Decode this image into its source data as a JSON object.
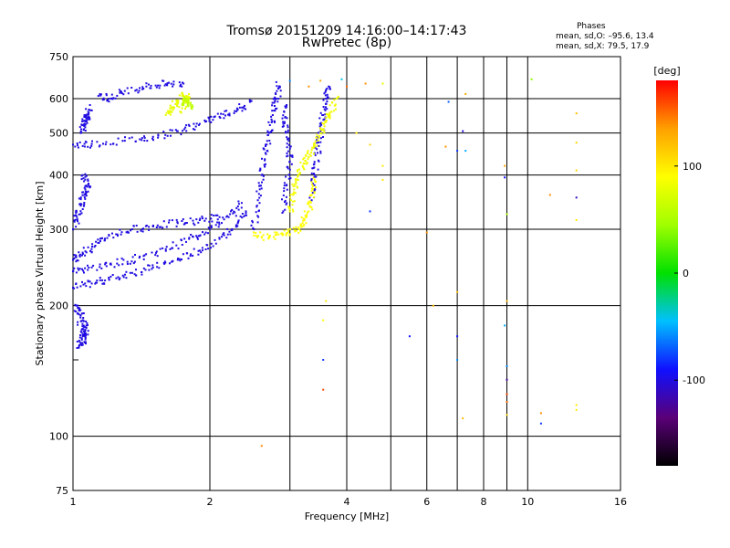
{
  "header": {
    "title_line1": "Tromsø 20151209 14:16:00–14:17:43",
    "title_line2": "RwPretec (8p)",
    "stats_title": "Phases",
    "stats_o": "mean, sd,O: –95.6, 13.4",
    "stats_x": "mean, sd,X:  79.5, 17.9"
  },
  "colors": {
    "background": "#ffffff",
    "grid": "#000000",
    "colorbar_stops": [
      "#000000",
      "#5a0078",
      "#1010ff",
      "#00c0ff",
      "#00e000",
      "#a0ff00",
      "#ffff00",
      "#ffa000",
      "#ff0000"
    ]
  },
  "chart_data": {
    "type": "scatter",
    "title": "Tromsø 20151209 14:16:00–14:17:43",
    "subtitle": "RwPretec (8p)",
    "xlabel": "Frequency [MHz]",
    "ylabel": "Stationary phase Virtual Height [km]",
    "x_scale": "log",
    "y_scale": "log",
    "xlim": [
      1,
      16
    ],
    "ylim": [
      75,
      750
    ],
    "x_ticks": [
      1,
      2,
      4,
      6,
      8,
      10,
      16
    ],
    "x_minor": [
      3,
      5,
      7,
      9
    ],
    "y_ticks": [
      75,
      100,
      200,
      300,
      400,
      500,
      600,
      750
    ],
    "y_minor": [
      150
    ],
    "grid": true,
    "colorbar": {
      "label": "[deg]",
      "range": [
        -180,
        180
      ],
      "ticks": [
        -100,
        0,
        100
      ]
    },
    "series": [
      {
        "traces": [
          {
            "phase": -100,
            "points": [
              [
                1.03,
                160
              ],
              [
                1.05,
                170
              ],
              [
                1.07,
                180
              ],
              [
                1.04,
                190
              ],
              [
                1.02,
                200
              ],
              [
                1.06,
                165
              ],
              [
                1.08,
                175
              ]
            ]
          },
          {
            "phase": -100,
            "points": [
              [
                1.0,
                220
              ],
              [
                1.1,
                225
              ],
              [
                1.2,
                230
              ],
              [
                1.35,
                238
              ],
              [
                1.5,
                245
              ],
              [
                1.7,
                255
              ],
              [
                1.9,
                268
              ],
              [
                2.1,
                285
              ],
              [
                2.3,
                305
              ],
              [
                2.4,
                330
              ]
            ]
          },
          {
            "phase": -100,
            "points": [
              [
                1.0,
                240
              ],
              [
                1.1,
                245
              ],
              [
                1.25,
                250
              ],
              [
                1.4,
                258
              ],
              [
                1.6,
                270
              ],
              [
                1.8,
                285
              ],
              [
                2.0,
                300
              ],
              [
                2.2,
                320
              ],
              [
                2.35,
                345
              ]
            ]
          },
          {
            "phase": -100,
            "points": [
              [
                1.0,
                255
              ],
              [
                1.05,
                265
              ],
              [
                1.12,
                275
              ],
              [
                1.2,
                290
              ],
              [
                1.35,
                300
              ],
              [
                1.5,
                305
              ],
              [
                1.7,
                310
              ],
              [
                1.9,
                315
              ],
              [
                2.1,
                320
              ]
            ]
          },
          {
            "phase": -100,
            "points": [
              [
                1.0,
                300
              ],
              [
                1.02,
                320
              ],
              [
                1.04,
                340
              ],
              [
                1.06,
                360
              ],
              [
                1.08,
                380
              ],
              [
                1.05,
                400
              ]
            ]
          },
          {
            "phase": -100,
            "points": [
              [
                1.0,
                470
              ],
              [
                1.1,
                472
              ],
              [
                1.3,
                480
              ],
              [
                1.5,
                490
              ],
              [
                1.7,
                505
              ],
              [
                1.9,
                525
              ],
              [
                2.1,
                545
              ],
              [
                2.3,
                565
              ],
              [
                2.45,
                590
              ]
            ]
          },
          {
            "phase": -100,
            "points": [
              [
                1.15,
                610
              ],
              [
                1.2,
                600
              ],
              [
                1.3,
                625
              ],
              [
                1.45,
                640
              ],
              [
                1.6,
                648
              ],
              [
                1.75,
                650
              ]
            ]
          },
          {
            "phase": -100,
            "points": [
              [
                1.06,
                520
              ],
              [
                1.07,
                540
              ],
              [
                1.08,
                560
              ],
              [
                1.04,
                500
              ],
              [
                1.09,
                580
              ]
            ]
          },
          {
            "phase": -100,
            "points": [
              [
                2.5,
                300
              ],
              [
                2.55,
                350
              ],
              [
                2.6,
                400
              ],
              [
                2.65,
                450
              ],
              [
                2.7,
                500
              ],
              [
                2.75,
                550
              ],
              [
                2.8,
                600
              ],
              [
                2.85,
                640
              ]
            ]
          },
          {
            "phase": -100,
            "points": [
              [
                2.9,
                330
              ],
              [
                2.95,
                380
              ],
              [
                3.0,
                430
              ],
              [
                2.98,
                480
              ],
              [
                2.92,
                530
              ],
              [
                2.95,
                580
              ]
            ]
          },
          {
            "phase": -100,
            "points": [
              [
                3.35,
                350
              ],
              [
                3.4,
                400
              ],
              [
                3.45,
                450
              ],
              [
                3.5,
                500
              ],
              [
                3.55,
                550
              ],
              [
                3.6,
                600
              ],
              [
                3.65,
                640
              ]
            ]
          },
          {
            "phase": 80,
            "points": [
              [
                1.6,
                550
              ],
              [
                1.65,
                570
              ],
              [
                1.7,
                590
              ],
              [
                1.75,
                610
              ],
              [
                1.8,
                600
              ],
              [
                1.72,
                560
              ]
            ]
          },
          {
            "phase": 60,
            "points": [
              [
                1.75,
                580
              ],
              [
                1.78,
                595
              ],
              [
                1.82,
                570
              ]
            ]
          },
          {
            "phase": 90,
            "points": [
              [
                2.5,
                290
              ],
              [
                2.7,
                288
              ],
              [
                2.9,
                292
              ],
              [
                3.1,
                298
              ],
              [
                3.2,
                310
              ],
              [
                3.3,
                330
              ],
              [
                3.35,
                360
              ],
              [
                3.4,
                390
              ]
            ]
          },
          {
            "phase": 85,
            "points": [
              [
                3.0,
                330
              ],
              [
                3.05,
                360
              ],
              [
                3.1,
                390
              ],
              [
                3.2,
                420
              ],
              [
                3.3,
                440
              ],
              [
                3.4,
                470
              ],
              [
                3.5,
                500
              ],
              [
                3.6,
                530
              ],
              [
                3.7,
                560
              ],
              [
                3.8,
                600
              ]
            ]
          }
        ]
      }
    ],
    "scattered_points": [
      {
        "x": 3.55,
        "y": 185,
        "phase": 90
      },
      {
        "x": 3.55,
        "y": 150,
        "phase": -80
      },
      {
        "x": 3.55,
        "y": 128,
        "phase": 160
      },
      {
        "x": 3.6,
        "y": 205,
        "phase": 100
      },
      {
        "x": 2.6,
        "y": 95,
        "phase": 140
      },
      {
        "x": 4.5,
        "y": 330,
        "phase": -80
      },
      {
        "x": 4.2,
        "y": 500,
        "phase": 100
      },
      {
        "x": 4.5,
        "y": 470,
        "phase": 110
      },
      {
        "x": 4.8,
        "y": 420,
        "phase": 100
      },
      {
        "x": 4.8,
        "y": 390,
        "phase": 100
      },
      {
        "x": 5.5,
        "y": 170,
        "phase": -90
      },
      {
        "x": 6.0,
        "y": 295,
        "phase": 140
      },
      {
        "x": 6.2,
        "y": 200,
        "phase": 120
      },
      {
        "x": 6.6,
        "y": 465,
        "phase": 140
      },
      {
        "x": 6.7,
        "y": 590,
        "phase": -70
      },
      {
        "x": 7.0,
        "y": 455,
        "phase": -80
      },
      {
        "x": 7.0,
        "y": 215,
        "phase": 120
      },
      {
        "x": 7.0,
        "y": 170,
        "phase": -90
      },
      {
        "x": 7.0,
        "y": 150,
        "phase": -60
      },
      {
        "x": 7.2,
        "y": 110,
        "phase": 120
      },
      {
        "x": 7.2,
        "y": 505,
        "phase": -100
      },
      {
        "x": 7.3,
        "y": 455,
        "phase": -50
      },
      {
        "x": 7.3,
        "y": 615,
        "phase": 130
      },
      {
        "x": 8.9,
        "y": 395,
        "phase": -90
      },
      {
        "x": 8.9,
        "y": 420,
        "phase": 130
      },
      {
        "x": 9.0,
        "y": 325,
        "phase": 50
      },
      {
        "x": 9.0,
        "y": 205,
        "phase": 120
      },
      {
        "x": 8.9,
        "y": 180,
        "phase": -50
      },
      {
        "x": 9.0,
        "y": 145,
        "phase": -60
      },
      {
        "x": 9.0,
        "y": 135,
        "phase": -120
      },
      {
        "x": 9.0,
        "y": 125,
        "phase": 160
      },
      {
        "x": 9.0,
        "y": 120,
        "phase": 150
      },
      {
        "x": 9.0,
        "y": 112,
        "phase": 110
      },
      {
        "x": 10.2,
        "y": 665,
        "phase": 40
      },
      {
        "x": 10.7,
        "y": 113,
        "phase": 140
      },
      {
        "x": 10.7,
        "y": 107,
        "phase": -80
      },
      {
        "x": 11.2,
        "y": 360,
        "phase": 140
      },
      {
        "x": 12.8,
        "y": 555,
        "phase": 120
      },
      {
        "x": 12.8,
        "y": 475,
        "phase": 110
      },
      {
        "x": 12.8,
        "y": 410,
        "phase": 110
      },
      {
        "x": 12.8,
        "y": 355,
        "phase": -110
      },
      {
        "x": 12.8,
        "y": 315,
        "phase": 100
      },
      {
        "x": 12.8,
        "y": 118,
        "phase": 100
      },
      {
        "x": 12.8,
        "y": 115,
        "phase": 100
      },
      {
        "x": 3.3,
        "y": 640,
        "phase": 140
      },
      {
        "x": 3.5,
        "y": 660,
        "phase": 130
      },
      {
        "x": 3.9,
        "y": 665,
        "phase": -40
      },
      {
        "x": 4.0,
        "y": 640,
        "phase": 150
      },
      {
        "x": 4.4,
        "y": 650,
        "phase": 140
      },
      {
        "x": 4.8,
        "y": 650,
        "phase": 80
      },
      {
        "x": 3.0,
        "y": 660,
        "phase": -60
      },
      {
        "x": 2.8,
        "y": 655,
        "phase": -100
      }
    ]
  }
}
